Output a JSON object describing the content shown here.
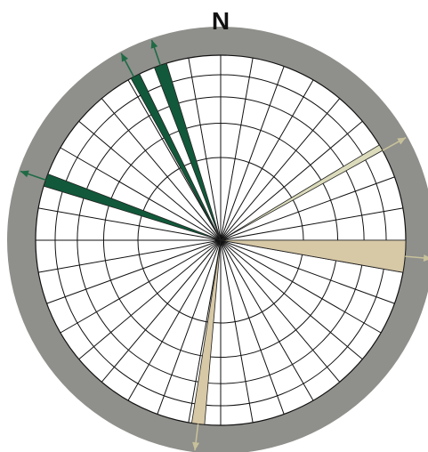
{
  "north_label": "N",
  "colors": {
    "ring": "#8f8f8b",
    "grid": "#111111",
    "plot_bg": "#ffffff",
    "petal_dark": "#11593a",
    "petal_light_1": "#d7c8a6",
    "petal_light_2": "#dcdcbc",
    "arrow_dark": "#1f6a45",
    "arrow_light": "#c7c19a"
  },
  "grid": {
    "rings": 5,
    "spokes_deg": 10
  },
  "petals": [
    {
      "name": "petal-nnw-1",
      "azimuth_from": 331,
      "azimuth_to": 334,
      "level": 1.0,
      "tone": "dark"
    },
    {
      "name": "petal-nnw-2",
      "azimuth_from": 339,
      "azimuth_to": 343,
      "level": 1.0,
      "tone": "dark"
    },
    {
      "name": "petal-wnw",
      "azimuth_from": 287,
      "azimuth_to": 291,
      "level": 1.0,
      "tone": "dark"
    },
    {
      "name": "petal-ene",
      "azimuth_from": 59,
      "azimuth_to": 61,
      "level": 1.0,
      "tone": "light2"
    },
    {
      "name": "petal-e",
      "azimuth_from": 90,
      "azimuth_to": 100,
      "level": 1.0,
      "tone": "light1"
    },
    {
      "name": "petal-ssw",
      "azimuth_from": 185,
      "azimuth_to": 189,
      "level": 1.0,
      "tone": "light1"
    }
  ],
  "arrows": [
    {
      "name": "arrow-nnw-1",
      "azimuth": 332,
      "tone": "dark"
    },
    {
      "name": "arrow-nnw-2",
      "azimuth": 341,
      "tone": "dark"
    },
    {
      "name": "arrow-wnw",
      "azimuth": 289,
      "tone": "dark"
    },
    {
      "name": "arrow-ene",
      "azimuth": 61,
      "tone": "light"
    },
    {
      "name": "arrow-e",
      "azimuth": 95,
      "tone": "light"
    },
    {
      "name": "arrow-ssw",
      "azimuth": 187,
      "tone": "light"
    }
  ]
}
